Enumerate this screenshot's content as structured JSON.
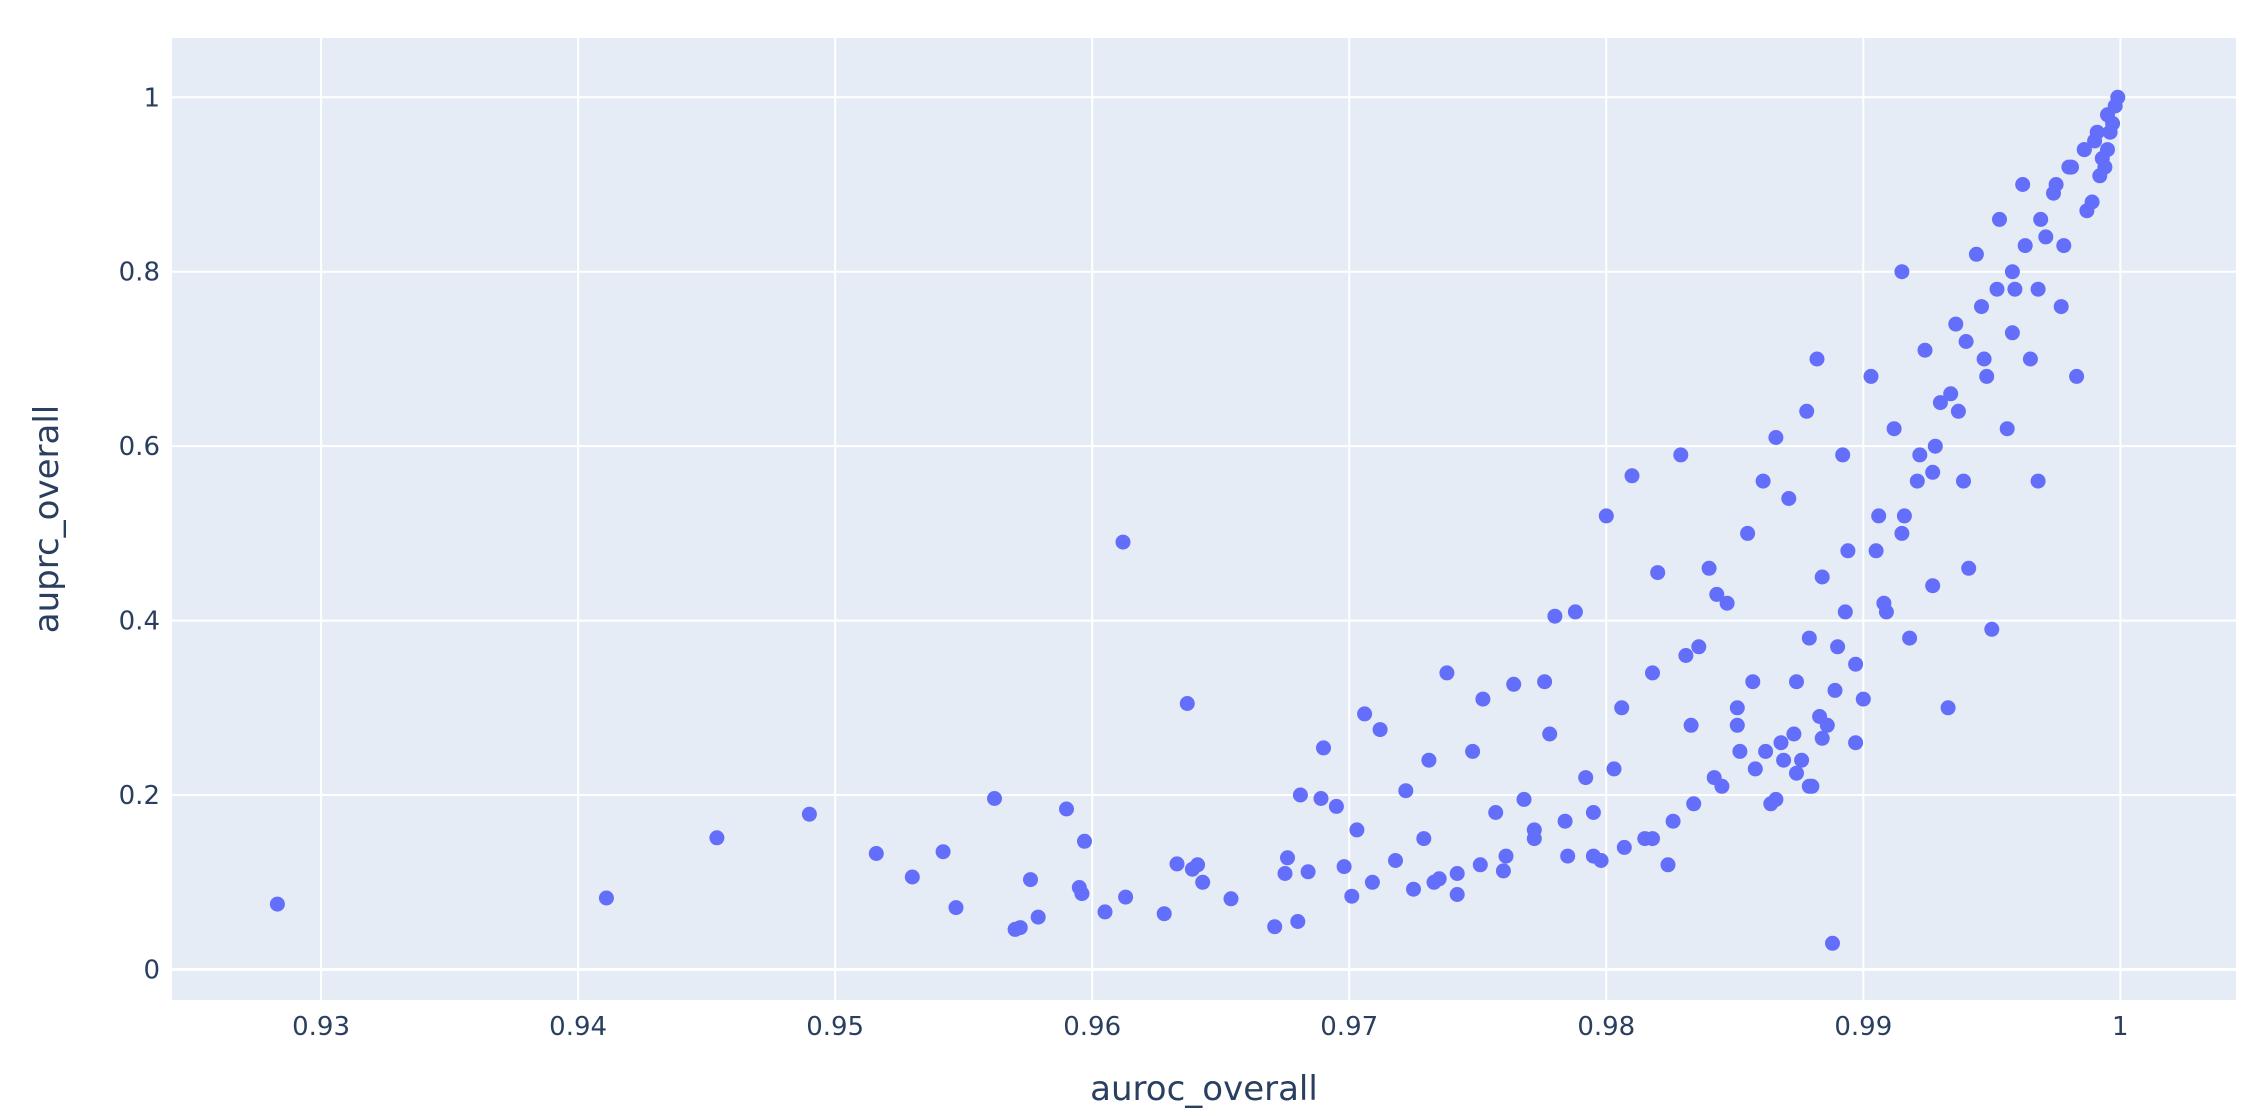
{
  "colors": {
    "plot_bg": "#e5ecf6",
    "grid": "#ffffff",
    "marker": "#636efa",
    "text": "#2a3f5f"
  },
  "chart_data": {
    "type": "scatter",
    "title": "",
    "xlabel": "auroc_overall",
    "ylabel": "auprc_overall",
    "xlim": [
      0.9242,
      1.0045
    ],
    "ylim": [
      -0.035,
      1.068
    ],
    "xticks": [
      0.93,
      0.94,
      0.95,
      0.96,
      0.97,
      0.98,
      0.99,
      1
    ],
    "xtick_labels": [
      "0.93",
      "0.94",
      "0.95",
      "0.96",
      "0.97",
      "0.98",
      "0.99",
      "1"
    ],
    "yticks": [
      0,
      0.2,
      0.4,
      0.6,
      0.8,
      1
    ],
    "ytick_labels": [
      "0",
      "0.2",
      "0.4",
      "0.6",
      "0.8",
      "1"
    ],
    "grid": true,
    "legend": "none",
    "series": [
      {
        "x": [
          0.9283,
          0.9411,
          0.9454,
          0.949,
          0.9516,
          0.953,
          0.9542,
          0.9547,
          0.9562,
          0.957,
          0.9572,
          0.9576,
          0.9579,
          0.959,
          0.9595,
          0.9596,
          0.9597,
          0.9605,
          0.9612,
          0.9613,
          0.9628,
          0.9633,
          0.9637,
          0.9639,
          0.9641,
          0.9643,
          0.9654,
          0.9671,
          0.9675,
          0.9676,
          0.968,
          0.9681,
          0.9684,
          0.9689,
          0.969,
          0.9695,
          0.9698,
          0.9701,
          0.9703,
          0.9706,
          0.9709,
          0.9712,
          0.9718,
          0.9722,
          0.9725,
          0.9729,
          0.9731,
          0.9735,
          0.9738,
          0.9742,
          0.9748,
          0.9752,
          0.9757,
          0.976,
          0.9764,
          0.9768,
          0.9772,
          0.9776,
          0.9778,
          0.978,
          0.9785,
          0.9788,
          0.9792,
          0.9795,
          0.9798,
          0.98,
          0.9803,
          0.9806,
          0.981,
          0.9815,
          0.9818,
          0.982,
          0.9824,
          0.9829,
          0.9833,
          0.9836,
          0.984,
          0.9845,
          0.9847,
          0.9851,
          0.9855,
          0.9858,
          0.9861,
          0.9864,
          0.9866,
          0.9868,
          0.9871,
          0.9874,
          0.9876,
          0.9878,
          0.988,
          0.9882,
          0.9884,
          0.9886,
          0.9888,
          0.989,
          0.9892,
          0.9894,
          0.9897,
          0.99,
          0.9903,
          0.9906,
          0.9909,
          0.9912,
          0.9915,
          0.9918,
          0.9921,
          0.9924,
          0.9927,
          0.993,
          0.9933,
          0.9936,
          0.9939,
          0.9941,
          0.9944,
          0.9947,
          0.995,
          0.9953,
          0.9956,
          0.9959,
          0.9962,
          0.9965,
          0.9968,
          0.9971,
          0.9974,
          0.9977,
          0.998,
          0.9983,
          0.9986,
          0.9989,
          0.9991,
          0.9993,
          0.9995,
          0.9997,
          0.9999,
          0.9869,
          0.9874,
          0.9879,
          0.9884,
          0.9852,
          0.9866,
          0.9889,
          0.9831,
          0.9843,
          0.9897,
          0.9908,
          0.9915,
          0.9922,
          0.9928,
          0.9934,
          0.994,
          0.9946,
          0.9952,
          0.9958,
          0.9963,
          0.9969,
          0.9975,
          0.9981,
          0.9986,
          0.999,
          0.9994,
          0.9996,
          0.9998,
          0.9883,
          0.9873,
          0.9862,
          0.9851,
          0.9842,
          0.9834,
          0.9826,
          0.9818,
          0.9807,
          0.9795,
          0.9784,
          0.9772,
          0.9761,
          0.9751,
          0.9742,
          0.9733,
          0.9857,
          0.9879,
          0.9893,
          0.9905,
          0.9916,
          0.9927,
          0.9937,
          0.9948,
          0.9958,
          0.9968,
          0.9978,
          0.9987,
          0.9992,
          0.9995
        ],
        "y": [
          0.075,
          0.082,
          0.151,
          0.178,
          0.133,
          0.106,
          0.135,
          0.071,
          0.196,
          0.046,
          0.048,
          0.103,
          0.06,
          0.184,
          0.094,
          0.087,
          0.147,
          0.066,
          0.49,
          0.083,
          0.064,
          0.121,
          0.305,
          0.115,
          0.12,
          0.1,
          0.081,
          0.049,
          0.11,
          0.128,
          0.055,
          0.2,
          0.112,
          0.196,
          0.254,
          0.187,
          0.118,
          0.084,
          0.16,
          0.293,
          0.1,
          0.275,
          0.125,
          0.205,
          0.092,
          0.15,
          0.24,
          0.104,
          0.34,
          0.086,
          0.25,
          0.31,
          0.18,
          0.113,
          0.327,
          0.195,
          0.16,
          0.33,
          0.27,
          0.405,
          0.13,
          0.41,
          0.22,
          0.18,
          0.125,
          0.52,
          0.23,
          0.3,
          0.566,
          0.15,
          0.34,
          0.455,
          0.12,
          0.59,
          0.28,
          0.37,
          0.46,
          0.21,
          0.42,
          0.3,
          0.5,
          0.23,
          0.56,
          0.19,
          0.61,
          0.26,
          0.54,
          0.33,
          0.24,
          0.64,
          0.21,
          0.7,
          0.45,
          0.28,
          0.03,
          0.37,
          0.59,
          0.48,
          0.26,
          0.31,
          0.68,
          0.52,
          0.41,
          0.62,
          0.8,
          0.38,
          0.56,
          0.71,
          0.44,
          0.65,
          0.3,
          0.74,
          0.56,
          0.46,
          0.82,
          0.7,
          0.39,
          0.86,
          0.62,
          0.78,
          0.9,
          0.7,
          0.56,
          0.84,
          0.89,
          0.76,
          0.92,
          0.68,
          0.94,
          0.88,
          0.96,
          0.93,
          0.98,
          0.97,
          1.0,
          0.24,
          0.225,
          0.21,
          0.265,
          0.25,
          0.195,
          0.32,
          0.36,
          0.43,
          0.35,
          0.42,
          0.5,
          0.59,
          0.6,
          0.66,
          0.72,
          0.76,
          0.78,
          0.8,
          0.83,
          0.86,
          0.9,
          0.92,
          0.94,
          0.95,
          0.92,
          0.96,
          0.99,
          0.29,
          0.27,
          0.25,
          0.28,
          0.22,
          0.19,
          0.17,
          0.15,
          0.14,
          0.13,
          0.17,
          0.15,
          0.13,
          0.12,
          0.11,
          0.1,
          0.33,
          0.38,
          0.41,
          0.48,
          0.52,
          0.57,
          0.64,
          0.68,
          0.73,
          0.78,
          0.83,
          0.87,
          0.91,
          0.94
        ]
      }
    ]
  }
}
